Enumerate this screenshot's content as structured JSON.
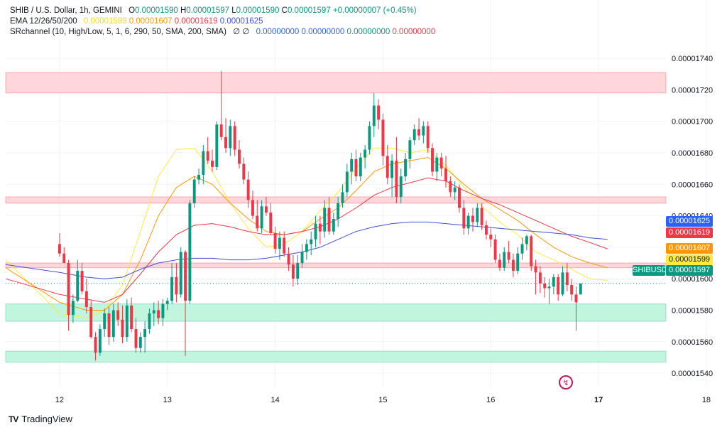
{
  "legend": {
    "symbol": "SHIB / U.S. Dollar, 1h, GEMINI",
    "o_label": "O",
    "o": "0.00001590",
    "h_label": "H",
    "h": "0.00001597",
    "l_label": "L",
    "l": "0.00001590",
    "c_label": "C",
    "c": "0.00001597",
    "change": "+0.00000007 (+0.45%)",
    "ema_label": "EMA 12/26/50/200",
    "ema_values": [
      "0.00001599",
      "0.00001607",
      "0.00001619",
      "0.00001625"
    ],
    "sr_label": "SRchannel (10, High/Low, 5, 1, 6, 290, 50, SMA, 200, SMA)",
    "sr_symbols": "∅ ∅",
    "sr_values": [
      "0.00000000",
      "0.00000000",
      "0.00000000",
      "0.00000000"
    ]
  },
  "colors": {
    "up": "#089981",
    "down": "#f23645",
    "ema12": "#ffeb3b",
    "ema26": "#ff9800",
    "ema50": "#f23645",
    "ema200": "#3f51d8",
    "zone_red": "#ffcdd2",
    "zone_green": "#b2f2d6",
    "sr_green": "#26a69a",
    "sr_red": "#f23645"
  },
  "price_tags": {
    "ema200": "0.00001625",
    "ema50": "0.00001619",
    "ema26": "0.00001607",
    "ema12": "0.00001599",
    "symbol": "SHIBUSD",
    "last": "0.00001597"
  },
  "watermark": {
    "logo": "TV",
    "text": "TradingView"
  },
  "icon": "fire-icon",
  "chart_data": {
    "type": "candlestick",
    "x_tick_labels": [
      "12",
      "13",
      "14",
      "15",
      "16",
      "17",
      "18"
    ],
    "y_tick_labels": [
      "0.00001740",
      "0.00001720",
      "0.00001700",
      "0.00001680",
      "0.00001660",
      "0.00001640",
      "0.00001620",
      "0.00001600",
      "0.00001580",
      "0.00001560",
      "0.00001540"
    ],
    "y_tick_values": [
      1740,
      1720,
      1700,
      1680,
      1660,
      1640,
      1620,
      1600,
      1580,
      1560,
      1540
    ],
    "price_unit_scale": 1e-08,
    "ylim": [
      1531,
      1759
    ],
    "x_range_hours": [
      -12,
      135
    ],
    "zones": [
      {
        "color": "red",
        "low": 1718,
        "high": 1731
      },
      {
        "color": "red",
        "low": 1648,
        "high": 1652
      },
      {
        "color": "red",
        "low": 1607,
        "high": 1610
      },
      {
        "color": "green",
        "low": 1573,
        "high": 1584
      },
      {
        "color": "green",
        "low": 1547,
        "high": 1554
      }
    ],
    "candles": [
      [
        1622,
        1629,
        1614,
        1616
      ],
      [
        1616,
        1620,
        1610,
        1610
      ],
      [
        1610,
        1612,
        1567,
        1577
      ],
      [
        1577,
        1590,
        1572,
        1586
      ],
      [
        1586,
        1612,
        1585,
        1605
      ],
      [
        1605,
        1610,
        1590,
        1592
      ],
      [
        1592,
        1600,
        1578,
        1582
      ],
      [
        1582,
        1586,
        1562,
        1563
      ],
      [
        1563,
        1566,
        1548,
        1553
      ],
      [
        1553,
        1571,
        1551,
        1568
      ],
      [
        1568,
        1581,
        1563,
        1578
      ],
      [
        1578,
        1582,
        1558,
        1563
      ],
      [
        1563,
        1584,
        1560,
        1580
      ],
      [
        1580,
        1585,
        1570,
        1574
      ],
      [
        1574,
        1583,
        1559,
        1563
      ],
      [
        1563,
        1587,
        1560,
        1583
      ],
      [
        1583,
        1588,
        1566,
        1568
      ],
      [
        1568,
        1575,
        1553,
        1556
      ],
      [
        1556,
        1566,
        1553,
        1563
      ],
      [
        1563,
        1573,
        1553,
        1568
      ],
      [
        1568,
        1581,
        1565,
        1578
      ],
      [
        1578,
        1585,
        1570,
        1580
      ],
      [
        1580,
        1586,
        1571,
        1575
      ],
      [
        1575,
        1587,
        1570,
        1584
      ],
      [
        1584,
        1588,
        1580,
        1586
      ],
      [
        1586,
        1610,
        1584,
        1601
      ],
      [
        1601,
        1610,
        1585,
        1590
      ],
      [
        1590,
        1620,
        1588,
        1617
      ],
      [
        1617,
        1618,
        1551,
        1586
      ],
      [
        1586,
        1650,
        1584,
        1648
      ],
      [
        1648,
        1665,
        1645,
        1663
      ],
      [
        1663,
        1670,
        1660,
        1666
      ],
      [
        1666,
        1685,
        1660,
        1681
      ],
      [
        1681,
        1690,
        1673,
        1675
      ],
      [
        1675,
        1682,
        1668,
        1671
      ],
      [
        1671,
        1700,
        1669,
        1698
      ],
      [
        1698,
        1732,
        1688,
        1690
      ],
      [
        1690,
        1702,
        1680,
        1683
      ],
      [
        1683,
        1701,
        1678,
        1697
      ],
      [
        1697,
        1700,
        1678,
        1682
      ],
      [
        1682,
        1688,
        1670,
        1673
      ],
      [
        1673,
        1677,
        1660,
        1663
      ],
      [
        1663,
        1668,
        1645,
        1650
      ],
      [
        1650,
        1656,
        1638,
        1640
      ],
      [
        1640,
        1650,
        1630,
        1632
      ],
      [
        1632,
        1650,
        1629,
        1646
      ],
      [
        1646,
        1652,
        1640,
        1642
      ],
      [
        1642,
        1648,
        1628,
        1629
      ],
      [
        1629,
        1633,
        1616,
        1619
      ],
      [
        1619,
        1630,
        1612,
        1626
      ],
      [
        1626,
        1630,
        1614,
        1616
      ],
      [
        1616,
        1620,
        1605,
        1609
      ],
      [
        1609,
        1615,
        1595,
        1600
      ],
      [
        1600,
        1615,
        1596,
        1610
      ],
      [
        1610,
        1622,
        1607,
        1617
      ],
      [
        1617,
        1625,
        1612,
        1622
      ],
      [
        1622,
        1630,
        1615,
        1625
      ],
      [
        1625,
        1640,
        1620,
        1635
      ],
      [
        1635,
        1640,
        1622,
        1630
      ],
      [
        1630,
        1650,
        1626,
        1645
      ],
      [
        1645,
        1652,
        1628,
        1630
      ],
      [
        1630,
        1642,
        1628,
        1638
      ],
      [
        1638,
        1652,
        1633,
        1648
      ],
      [
        1648,
        1660,
        1645,
        1655
      ],
      [
        1655,
        1673,
        1652,
        1668
      ],
      [
        1668,
        1680,
        1660,
        1676
      ],
      [
        1676,
        1682,
        1662,
        1665
      ],
      [
        1665,
        1680,
        1662,
        1677
      ],
      [
        1677,
        1685,
        1670,
        1682
      ],
      [
        1682,
        1700,
        1679,
        1697
      ],
      [
        1697,
        1718,
        1690,
        1710
      ],
      [
        1710,
        1714,
        1695,
        1701
      ],
      [
        1701,
        1705,
        1672,
        1678
      ],
      [
        1678,
        1685,
        1660,
        1664
      ],
      [
        1664,
        1679,
        1652,
        1675
      ],
      [
        1675,
        1690,
        1648,
        1652
      ],
      [
        1652,
        1670,
        1648,
        1665
      ],
      [
        1665,
        1680,
        1662,
        1676
      ],
      [
        1676,
        1690,
        1670,
        1688
      ],
      [
        1688,
        1698,
        1685,
        1695
      ],
      [
        1695,
        1702,
        1688,
        1691
      ],
      [
        1691,
        1700,
        1686,
        1697
      ],
      [
        1697,
        1700,
        1680,
        1683
      ],
      [
        1683,
        1686,
        1665,
        1668
      ],
      [
        1668,
        1680,
        1662,
        1677
      ],
      [
        1677,
        1680,
        1665,
        1670
      ],
      [
        1670,
        1678,
        1658,
        1662
      ],
      [
        1662,
        1665,
        1652,
        1655
      ],
      [
        1655,
        1662,
        1650,
        1658
      ],
      [
        1658,
        1660,
        1642,
        1645
      ],
      [
        1645,
        1650,
        1628,
        1632
      ],
      [
        1632,
        1642,
        1628,
        1640
      ],
      [
        1640,
        1645,
        1630,
        1636
      ],
      [
        1636,
        1648,
        1633,
        1645
      ],
      [
        1645,
        1648,
        1631,
        1634
      ],
      [
        1634,
        1637,
        1625,
        1628
      ],
      [
        1628,
        1632,
        1620,
        1625
      ],
      [
        1625,
        1628,
        1610,
        1612
      ],
      [
        1612,
        1616,
        1605,
        1607
      ],
      [
        1607,
        1620,
        1605,
        1617
      ],
      [
        1617,
        1624,
        1610,
        1612
      ],
      [
        1612,
        1616,
        1601,
        1605
      ],
      [
        1605,
        1620,
        1603,
        1616
      ],
      [
        1616,
        1626,
        1612,
        1622
      ],
      [
        1622,
        1628,
        1618,
        1627
      ],
      [
        1627,
        1628,
        1605,
        1608
      ],
      [
        1608,
        1612,
        1590,
        1604
      ],
      [
        1604,
        1608,
        1591,
        1597
      ],
      [
        1597,
        1601,
        1588,
        1594
      ],
      [
        1594,
        1600,
        1584,
        1595
      ],
      [
        1595,
        1603,
        1590,
        1601
      ],
      [
        1601,
        1603,
        1586,
        1590
      ],
      [
        1590,
        1608,
        1589,
        1604
      ],
      [
        1604,
        1610,
        1592,
        1596
      ],
      [
        1596,
        1600,
        1586,
        1590
      ],
      [
        1590,
        1595,
        1567,
        1585
      ],
      [
        1590,
        1597,
        1590,
        1597
      ]
    ],
    "series": [
      {
        "name": "EMA 12",
        "color": "ema12",
        "values": [
          [
            -12,
            1612
          ],
          [
            0,
            1578
          ],
          [
            6,
            1575
          ],
          [
            10,
            1580
          ],
          [
            14,
            1596
          ],
          [
            18,
            1630
          ],
          [
            22,
            1665
          ],
          [
            26,
            1682
          ],
          [
            30,
            1683
          ],
          [
            34,
            1668
          ],
          [
            38,
            1648
          ],
          [
            42,
            1632
          ],
          [
            46,
            1620
          ],
          [
            50,
            1622
          ],
          [
            54,
            1630
          ],
          [
            58,
            1643
          ],
          [
            62,
            1655
          ],
          [
            66,
            1670
          ],
          [
            70,
            1683
          ],
          [
            74,
            1683
          ],
          [
            78,
            1680
          ],
          [
            82,
            1682
          ],
          [
            86,
            1672
          ],
          [
            90,
            1658
          ],
          [
            94,
            1646
          ],
          [
            98,
            1636
          ],
          [
            102,
            1628
          ],
          [
            106,
            1617
          ],
          [
            110,
            1612
          ],
          [
            114,
            1606
          ],
          [
            118,
            1600
          ],
          [
            122,
            1599
          ]
        ]
      },
      {
        "name": "EMA 26",
        "color": "ema26",
        "values": [
          [
            -12,
            1607
          ],
          [
            0,
            1585
          ],
          [
            6,
            1580
          ],
          [
            10,
            1580
          ],
          [
            14,
            1590
          ],
          [
            18,
            1612
          ],
          [
            22,
            1640
          ],
          [
            26,
            1658
          ],
          [
            30,
            1665
          ],
          [
            34,
            1660
          ],
          [
            38,
            1648
          ],
          [
            42,
            1638
          ],
          [
            46,
            1630
          ],
          [
            50,
            1628
          ],
          [
            54,
            1630
          ],
          [
            58,
            1638
          ],
          [
            62,
            1645
          ],
          [
            66,
            1656
          ],
          [
            70,
            1668
          ],
          [
            74,
            1673
          ],
          [
            78,
            1675
          ],
          [
            82,
            1677
          ],
          [
            86,
            1670
          ],
          [
            90,
            1660
          ],
          [
            94,
            1651
          ],
          [
            98,
            1644
          ],
          [
            102,
            1637
          ],
          [
            106,
            1628
          ],
          [
            110,
            1620
          ],
          [
            114,
            1614
          ],
          [
            118,
            1610
          ],
          [
            122,
            1607
          ]
        ]
      },
      {
        "name": "EMA 50",
        "color": "ema50",
        "values": [
          [
            -12,
            1600
          ],
          [
            0,
            1590
          ],
          [
            6,
            1587
          ],
          [
            10,
            1585
          ],
          [
            14,
            1590
          ],
          [
            18,
            1603
          ],
          [
            22,
            1617
          ],
          [
            26,
            1628
          ],
          [
            30,
            1634
          ],
          [
            34,
            1635
          ],
          [
            38,
            1633
          ],
          [
            42,
            1630
          ],
          [
            46,
            1628
          ],
          [
            50,
            1628
          ],
          [
            54,
            1630
          ],
          [
            58,
            1633
          ],
          [
            62,
            1638
          ],
          [
            66,
            1645
          ],
          [
            70,
            1653
          ],
          [
            74,
            1658
          ],
          [
            78,
            1661
          ],
          [
            82,
            1664
          ],
          [
            86,
            1662
          ],
          [
            90,
            1656
          ],
          [
            94,
            1651
          ],
          [
            98,
            1647
          ],
          [
            102,
            1642
          ],
          [
            106,
            1637
          ],
          [
            110,
            1632
          ],
          [
            114,
            1627
          ],
          [
            118,
            1623
          ],
          [
            122,
            1619
          ]
        ]
      },
      {
        "name": "EMA 200",
        "color": "ema200",
        "values": [
          [
            -12,
            1609
          ],
          [
            0,
            1604
          ],
          [
            6,
            1601
          ],
          [
            10,
            1600
          ],
          [
            14,
            1601
          ],
          [
            18,
            1606
          ],
          [
            22,
            1610
          ],
          [
            26,
            1612
          ],
          [
            30,
            1613
          ],
          [
            34,
            1613
          ],
          [
            38,
            1612
          ],
          [
            42,
            1612
          ],
          [
            46,
            1613
          ],
          [
            50,
            1615
          ],
          [
            54,
            1617
          ],
          [
            58,
            1620
          ],
          [
            62,
            1625
          ],
          [
            66,
            1630
          ],
          [
            70,
            1633
          ],
          [
            74,
            1635
          ],
          [
            78,
            1636
          ],
          [
            82,
            1636
          ],
          [
            86,
            1635
          ],
          [
            90,
            1634
          ],
          [
            94,
            1633
          ],
          [
            98,
            1632
          ],
          [
            102,
            1631
          ],
          [
            106,
            1630
          ],
          [
            110,
            1629
          ],
          [
            114,
            1628
          ],
          [
            118,
            1626
          ],
          [
            122,
            1625
          ]
        ]
      }
    ],
    "last_price": 1597
  }
}
